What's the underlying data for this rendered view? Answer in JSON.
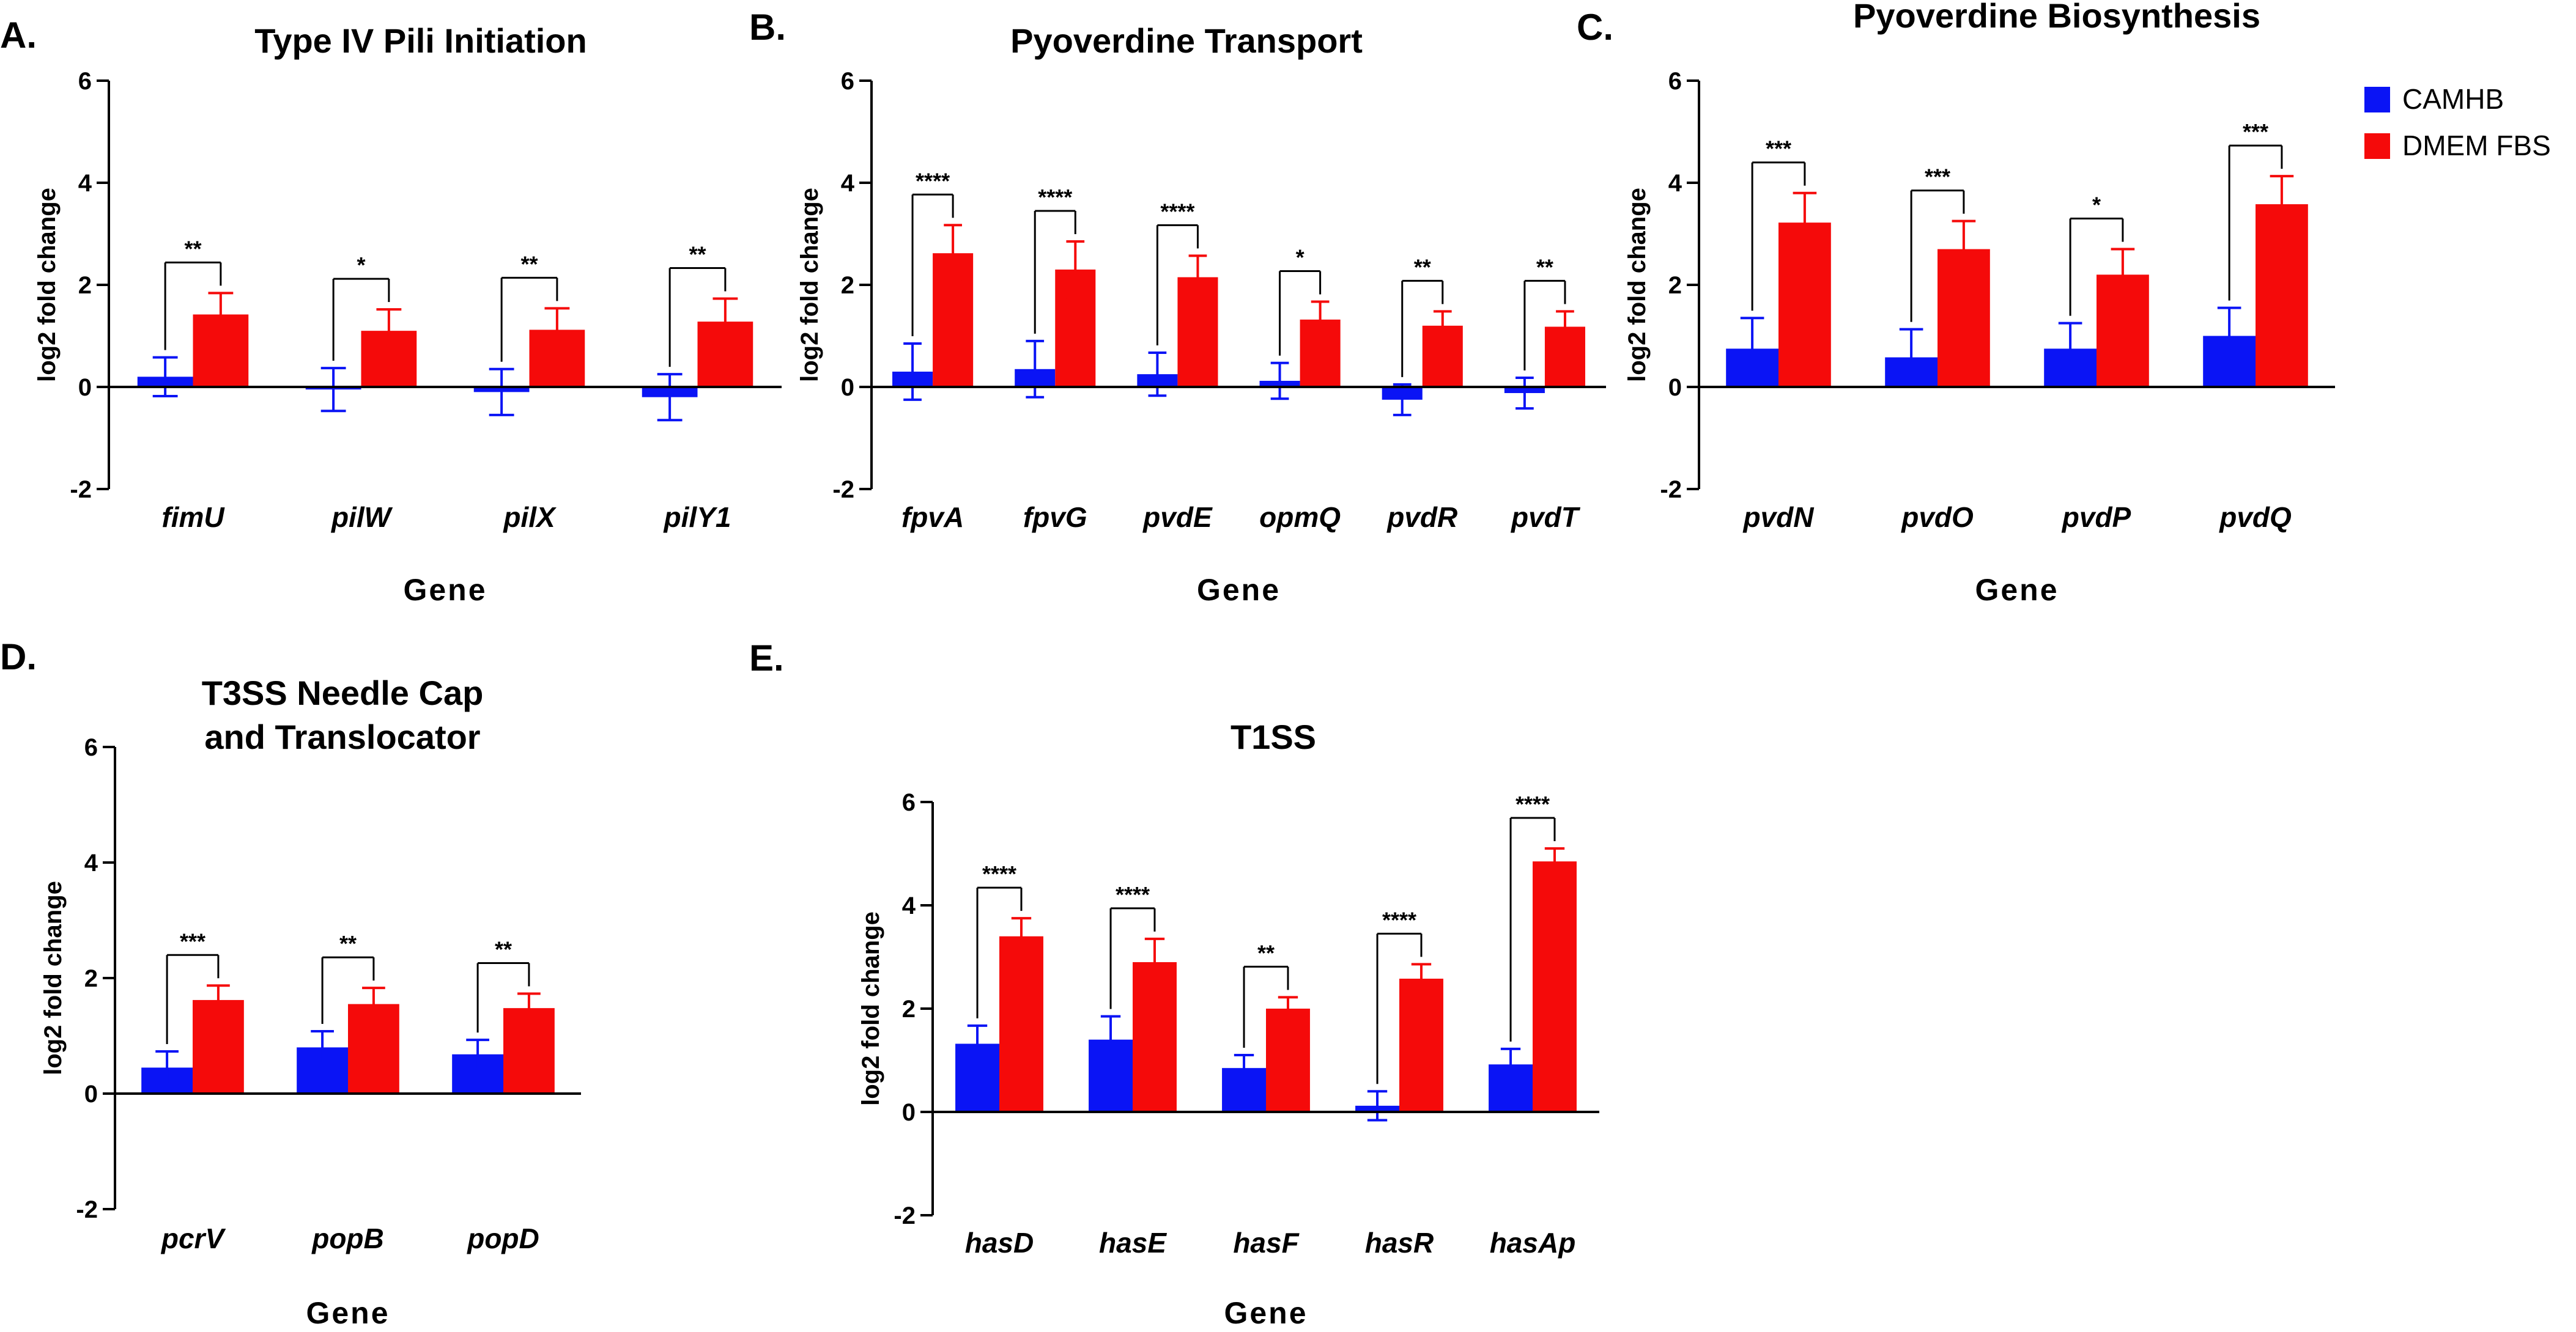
{
  "colors": {
    "camhb": "#0a14f5",
    "dmem": "#f50a0a",
    "axis": "#000000"
  },
  "legend": [
    {
      "label": "CAMHB",
      "color": "#0a14f5"
    },
    {
      "label": "DMEM FBS",
      "color": "#f50a0a"
    }
  ],
  "chart_data": [
    {
      "panel": "A.",
      "type": "bar",
      "title": [
        "Type IV Pili Initiation"
      ],
      "xlabel": "Gene",
      "ylabel": "log2 fold change",
      "ylim": [
        -2,
        6
      ],
      "yticks": [
        -2,
        0,
        2,
        4,
        6
      ],
      "categories": [
        "fimU",
        "pilW",
        "pilX",
        "pilY1"
      ],
      "series": [
        {
          "name": "CAMHB",
          "values": [
            0.2,
            -0.05,
            -0.1,
            -0.2
          ],
          "errors": [
            0.38,
            0.42,
            0.45,
            0.45
          ]
        },
        {
          "name": "DMEM FBS",
          "values": [
            1.42,
            1.1,
            1.12,
            1.28
          ],
          "errors": [
            0.42,
            0.42,
            0.42,
            0.45
          ]
        }
      ],
      "significance": [
        "**",
        "*",
        "**",
        "**"
      ]
    },
    {
      "panel": "B.",
      "type": "bar",
      "title": [
        "Pyoverdine Transport"
      ],
      "xlabel": "Gene",
      "ylabel": "log2 fold change",
      "ylim": [
        -2,
        6
      ],
      "yticks": [
        -2,
        0,
        2,
        4,
        6
      ],
      "categories": [
        "fpvA",
        "fpvG",
        "pvdE",
        "opmQ",
        "pvdR",
        "pvdT"
      ],
      "series": [
        {
          "name": "CAMHB",
          "values": [
            0.3,
            0.35,
            0.25,
            0.12,
            -0.25,
            -0.12
          ],
          "errors": [
            0.55,
            0.55,
            0.42,
            0.35,
            0.3,
            0.3
          ]
        },
        {
          "name": "DMEM FBS",
          "values": [
            2.62,
            2.3,
            2.15,
            1.32,
            1.2,
            1.18
          ],
          "errors": [
            0.55,
            0.55,
            0.42,
            0.35,
            0.28,
            0.3
          ]
        }
      ],
      "significance": [
        "****",
        "****",
        "****",
        "*",
        "**",
        "**"
      ]
    },
    {
      "panel": "C.",
      "type": "bar",
      "title": [
        "Pyoverdine Biosynthesis"
      ],
      "xlabel": "Gene",
      "ylabel": "log2 fold change",
      "ylim": [
        -2,
        6
      ],
      "yticks": [
        -2,
        0,
        2,
        4,
        6
      ],
      "categories": [
        "pvdN",
        "pvdO",
        "pvdP",
        "pvdQ"
      ],
      "series": [
        {
          "name": "CAMHB",
          "values": [
            0.75,
            0.58,
            0.75,
            1.0
          ],
          "errors": [
            0.6,
            0.55,
            0.5,
            0.55
          ]
        },
        {
          "name": "DMEM FBS",
          "values": [
            3.22,
            2.7,
            2.2,
            3.58
          ],
          "errors": [
            0.58,
            0.55,
            0.5,
            0.55
          ]
        }
      ],
      "significance": [
        "***",
        "***",
        "*",
        "***"
      ]
    },
    {
      "panel": "D.",
      "type": "bar",
      "title": [
        "T3SS Needle Cap",
        "and Translocator"
      ],
      "xlabel": "Gene",
      "ylabel": "log2 fold change",
      "ylim": [
        -2,
        6
      ],
      "yticks": [
        -2,
        0,
        2,
        4,
        6
      ],
      "categories": [
        "pcrV",
        "popB",
        "popD"
      ],
      "series": [
        {
          "name": "CAMHB",
          "values": [
            0.45,
            0.8,
            0.68
          ],
          "errors": [
            0.28,
            0.28,
            0.25
          ]
        },
        {
          "name": "DMEM FBS",
          "values": [
            1.62,
            1.55,
            1.48
          ],
          "errors": [
            0.25,
            0.28,
            0.25
          ]
        }
      ],
      "significance": [
        "***",
        "**",
        "**"
      ]
    },
    {
      "panel": "E.",
      "type": "bar",
      "title": [
        "T1SS"
      ],
      "xlabel": "Gene",
      "ylabel": "log2 fold change",
      "ylim": [
        -2,
        6
      ],
      "yticks": [
        -2,
        0,
        2,
        4,
        6
      ],
      "categories": [
        "hasD",
        "hasE",
        "hasF",
        "hasR",
        "hasAp"
      ],
      "series": [
        {
          "name": "CAMHB",
          "values": [
            1.32,
            1.4,
            0.85,
            0.12,
            0.92
          ],
          "errors": [
            0.35,
            0.45,
            0.25,
            0.28,
            0.3
          ]
        },
        {
          "name": "DMEM FBS",
          "values": [
            3.4,
            2.9,
            2.0,
            2.58,
            4.85
          ],
          "errors": [
            0.35,
            0.45,
            0.22,
            0.28,
            0.25
          ]
        }
      ],
      "significance": [
        "****",
        "****",
        "**",
        "****",
        "****"
      ]
    }
  ]
}
